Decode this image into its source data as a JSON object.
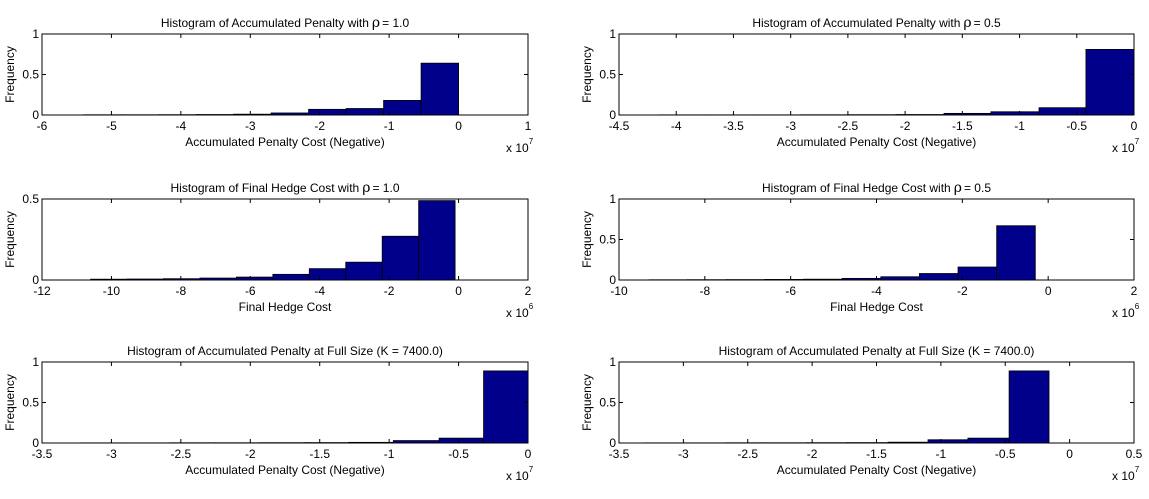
{
  "figure": {
    "background": "#ffffff",
    "bar_color": "#00008B",
    "bar_edge": "#000000"
  },
  "chart_data": [
    {
      "type": "bar",
      "title": "Histogram of Accumulated Penalty with",
      "title_symbol": "ρ",
      "title_suffix": "=  1.0",
      "xlabel": "Accumulated Penalty Cost (Negative)",
      "ylabel": "Frequency",
      "xlim": [
        -6,
        1
      ],
      "ylim": [
        0,
        1
      ],
      "xticks": [
        -6,
        -5,
        -4,
        -3,
        -2,
        -1,
        0,
        1
      ],
      "yticks": [
        0,
        0.5,
        1
      ],
      "xtick_labels": [
        "-6",
        "-5",
        "-4",
        "-3",
        "-2",
        "-1",
        "0",
        "1"
      ],
      "ytick_labels": [
        "0",
        "0.5",
        "1"
      ],
      "x_exponent": "7",
      "bin_edges": [
        -5.4,
        -4.86,
        -4.32,
        -3.78,
        -3.24,
        -2.7,
        -2.16,
        -1.62,
        -1.08,
        -0.54,
        0
      ],
      "values": [
        0.003,
        0.003,
        0.004,
        0.006,
        0.01,
        0.025,
        0.07,
        0.08,
        0.18,
        0.64
      ]
    },
    {
      "type": "bar",
      "title": "Histogram of Accumulated Penalty with",
      "title_symbol": "ρ",
      "title_suffix": "=  0.5",
      "xlabel": "Accumulated Penalty Cost (Negative)",
      "ylabel": "Frequency",
      "xlim": [
        -4.5,
        0
      ],
      "ylim": [
        0,
        1
      ],
      "xticks": [
        -4.5,
        -4,
        -3.5,
        -3,
        -2.5,
        -2,
        -1.5,
        -1,
        -0.5,
        0
      ],
      "yticks": [
        0,
        0.5,
        1
      ],
      "xtick_labels": [
        "-4.5",
        "-4",
        "-3.5",
        "-3",
        "-2.5",
        "-2",
        "-1.5",
        "-1",
        "-0.5",
        "0"
      ],
      "ytick_labels": [
        "0",
        "0.5",
        "1"
      ],
      "x_exponent": "7",
      "bin_edges": [
        -4.15,
        -3.74,
        -3.32,
        -2.91,
        -2.49,
        -2.08,
        -1.66,
        -1.25,
        -0.83,
        -0.42,
        0
      ],
      "values": [
        0.002,
        0.002,
        0.002,
        0.003,
        0.004,
        0.006,
        0.02,
        0.04,
        0.09,
        0.81
      ]
    },
    {
      "type": "bar",
      "title": "Histogram of Final Hedge Cost with",
      "title_symbol": "ρ",
      "title_suffix": "=  1.0",
      "xlabel": "Final Hedge Cost",
      "ylabel": "Frequency",
      "xlim": [
        -12,
        2
      ],
      "ylim": [
        0,
        0.5
      ],
      "xticks": [
        -12,
        -10,
        -8,
        -6,
        -4,
        -2,
        0,
        2
      ],
      "yticks": [
        0,
        0.5
      ],
      "xtick_labels": [
        "-12",
        "-10",
        "-8",
        "-6",
        "-4",
        "-2",
        "0",
        "2"
      ],
      "ytick_labels": [
        "0",
        "0.5"
      ],
      "x_exponent": "6",
      "bin_edges": [
        -10.6,
        -9.55,
        -8.5,
        -7.45,
        -6.4,
        -5.35,
        -4.3,
        -3.25,
        -2.2,
        -1.15,
        -0.1
      ],
      "values": [
        0.005,
        0.006,
        0.008,
        0.012,
        0.018,
        0.035,
        0.07,
        0.11,
        0.27,
        0.49
      ]
    },
    {
      "type": "bar",
      "title": "Histogram of Final Hedge Cost with",
      "title_symbol": "ρ",
      "title_suffix": "=  0.5",
      "xlabel": "Final Hedge Cost",
      "ylabel": "Frequency",
      "xlim": [
        -10,
        2
      ],
      "ylim": [
        0,
        1
      ],
      "xticks": [
        -10,
        -8,
        -6,
        -4,
        -2,
        0,
        2
      ],
      "yticks": [
        0,
        0.5,
        1
      ],
      "xtick_labels": [
        "-10",
        "-8",
        "-6",
        "-4",
        "-2",
        "0",
        "2"
      ],
      "ytick_labels": [
        "0",
        "0.5",
        "1"
      ],
      "x_exponent": "6",
      "bin_edges": [
        -9.3,
        -8.4,
        -7.5,
        -6.6,
        -5.7,
        -4.8,
        -3.9,
        -3.0,
        -2.1,
        -1.2,
        -0.3
      ],
      "values": [
        0.003,
        0.004,
        0.005,
        0.007,
        0.01,
        0.02,
        0.04,
        0.08,
        0.16,
        0.67
      ]
    },
    {
      "type": "bar",
      "title": "Histogram of Accumulated Penalty at Full Size (K =  7400.0)",
      "xlabel": "Accumulated Penalty Cost (Negative)",
      "ylabel": "Frequency",
      "xlim": [
        -3.5,
        0
      ],
      "ylim": [
        0,
        1
      ],
      "xticks": [
        -3.5,
        -3,
        -2.5,
        -2,
        -1.5,
        -1,
        -0.5,
        0
      ],
      "yticks": [
        0,
        0.5,
        1
      ],
      "xtick_labels": [
        "-3.5",
        "-3",
        "-2.5",
        "-2",
        "-1.5",
        "-1",
        "-0.5",
        "0"
      ],
      "ytick_labels": [
        "0",
        "0.5",
        "1"
      ],
      "x_exponent": "7",
      "bin_edges": [
        -3.22,
        -2.9,
        -2.58,
        -2.25,
        -1.93,
        -1.61,
        -1.29,
        -0.97,
        -0.64,
        -0.32,
        0
      ],
      "values": [
        0.002,
        0.002,
        0.003,
        0.003,
        0.004,
        0.005,
        0.008,
        0.03,
        0.06,
        0.89
      ]
    },
    {
      "type": "bar",
      "title": "Histogram of Accumulated Penalty at Full Size (K =  7400.0)",
      "xlabel": "Accumulated Penalty Cost (Negative)",
      "ylabel": "Frequency",
      "xlim": [
        -3.5,
        0.5
      ],
      "ylim": [
        0,
        1
      ],
      "xticks": [
        -3.5,
        -3,
        -2.5,
        -2,
        -1.5,
        -1,
        -0.5,
        0,
        0.5
      ],
      "yticks": [
        0,
        0.5,
        1
      ],
      "xtick_labels": [
        "-3.5",
        "-3",
        "-2.5",
        "-2",
        "-1.5",
        "-1",
        "-0.5",
        "0",
        "0.5"
      ],
      "ytick_labels": [
        "0",
        "0.5",
        "1"
      ],
      "x_exponent": "7",
      "bin_edges": [
        -3.3,
        -2.99,
        -2.67,
        -2.36,
        -2.04,
        -1.73,
        -1.41,
        -1.1,
        -0.79,
        -0.47,
        -0.16
      ],
      "values": [
        0.002,
        0.002,
        0.003,
        0.003,
        0.004,
        0.005,
        0.01,
        0.04,
        0.06,
        0.89
      ]
    }
  ]
}
